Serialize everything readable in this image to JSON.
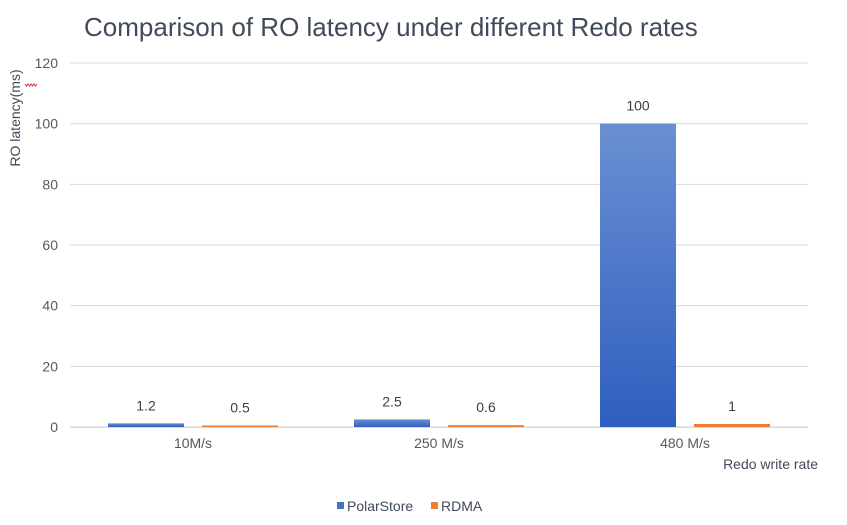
{
  "chart_data": {
    "type": "bar",
    "title": "Comparison of RO latency under different Redo rates",
    "xlabel": "Redo write rate",
    "ylabel": "RO latency(ms)",
    "categories": [
      "10M/s",
      "250 M/s",
      "480 M/s"
    ],
    "ylim": [
      0,
      120
    ],
    "yticks": [
      0,
      20,
      40,
      60,
      80,
      100,
      120
    ],
    "grid": true,
    "legend_position": "bottom",
    "series": [
      {
        "name": "PolarStore",
        "color": "#4472c4",
        "values": [
          1.2,
          2.5,
          100
        ],
        "labels": [
          "1.2",
          "2.5",
          "100"
        ]
      },
      {
        "name": "RDMA",
        "color": "#ed7d31",
        "values": [
          0.5,
          0.6,
          1
        ],
        "labels": [
          "0.5",
          "0.6",
          "1"
        ]
      }
    ]
  }
}
